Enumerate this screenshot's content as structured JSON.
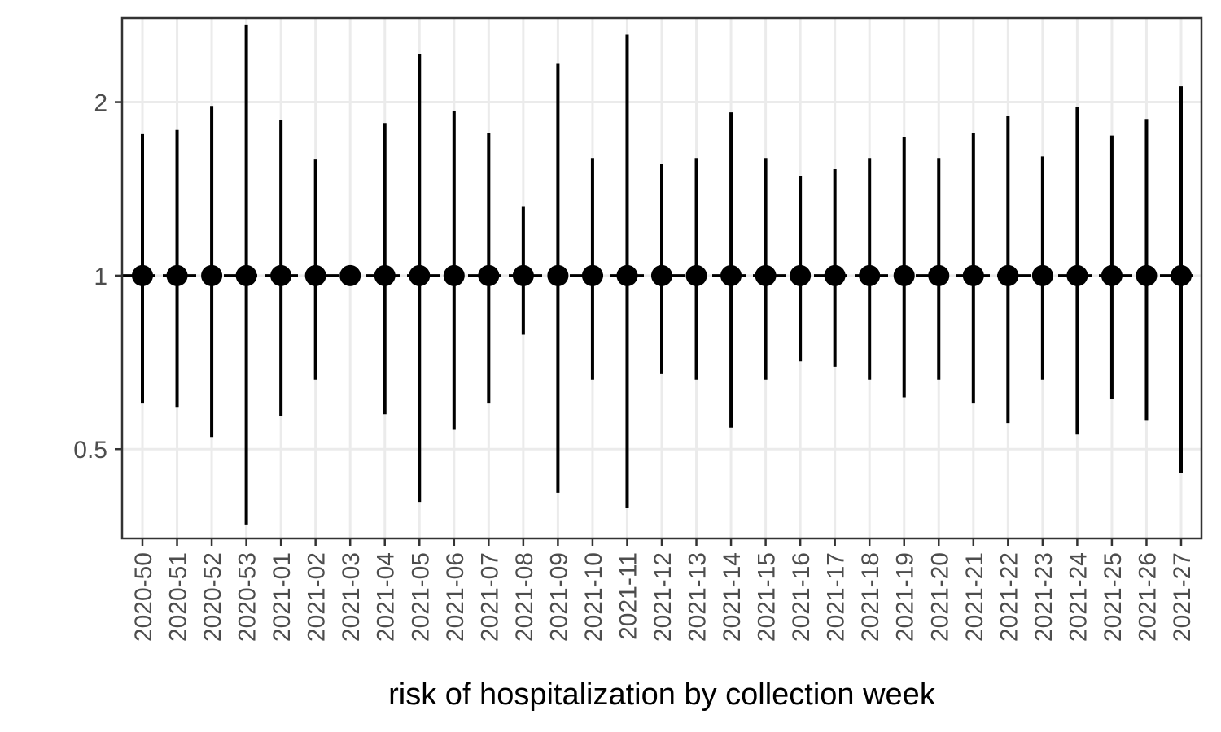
{
  "chart_data": {
    "type": "scatter",
    "title": "",
    "xlabel": "risk of hospitalization by collection week",
    "ylabel": "",
    "y_scale": "log",
    "y_ticks": [
      0.5,
      1,
      2
    ],
    "y_tick_labels": [
      "0.5",
      "1",
      "2"
    ],
    "ylim": [
      0.35,
      2.8
    ],
    "reference_line": {
      "y": 1,
      "style": "dashed"
    },
    "grid": true,
    "legend": "none",
    "colors": {
      "points": "#000000",
      "grid": "#ebebeb",
      "panel_border": "#333333"
    },
    "categories": [
      "2020-50",
      "2020-51",
      "2020-52",
      "2020-53",
      "2021-01",
      "2021-02",
      "2021-03",
      "2021-04",
      "2021-05",
      "2021-06",
      "2021-07",
      "2021-08",
      "2021-09",
      "2021-10",
      "2021-11",
      "2021-12",
      "2021-13",
      "2021-14",
      "2021-15",
      "2021-16",
      "2021-17",
      "2021-18",
      "2021-19",
      "2021-20",
      "2021-21",
      "2021-22",
      "2021-23",
      "2021-24",
      "2021-25",
      "2021-26",
      "2021-27"
    ],
    "estimate": [
      1,
      1,
      1,
      1,
      1,
      1,
      1,
      1,
      1,
      1,
      1,
      1,
      1,
      1,
      1,
      1,
      1,
      1,
      1,
      1,
      1,
      1,
      1,
      1,
      1,
      1,
      1,
      1,
      1,
      1,
      1
    ],
    "lower": [
      0.6,
      0.59,
      0.525,
      0.37,
      0.57,
      0.66,
      1,
      0.575,
      0.405,
      0.54,
      0.6,
      0.79,
      0.42,
      0.66,
      0.395,
      0.675,
      0.66,
      0.545,
      0.66,
      0.71,
      0.695,
      0.66,
      0.615,
      0.66,
      0.6,
      0.555,
      0.66,
      0.53,
      0.61,
      0.56,
      0.455
    ],
    "upper": [
      1.76,
      1.79,
      1.97,
      2.72,
      1.86,
      1.59,
      1,
      1.84,
      2.42,
      1.93,
      1.77,
      1.32,
      2.33,
      1.6,
      2.62,
      1.56,
      1.6,
      1.92,
      1.6,
      1.49,
      1.53,
      1.6,
      1.74,
      1.6,
      1.77,
      1.89,
      1.61,
      1.96,
      1.75,
      1.87,
      2.13
    ]
  }
}
